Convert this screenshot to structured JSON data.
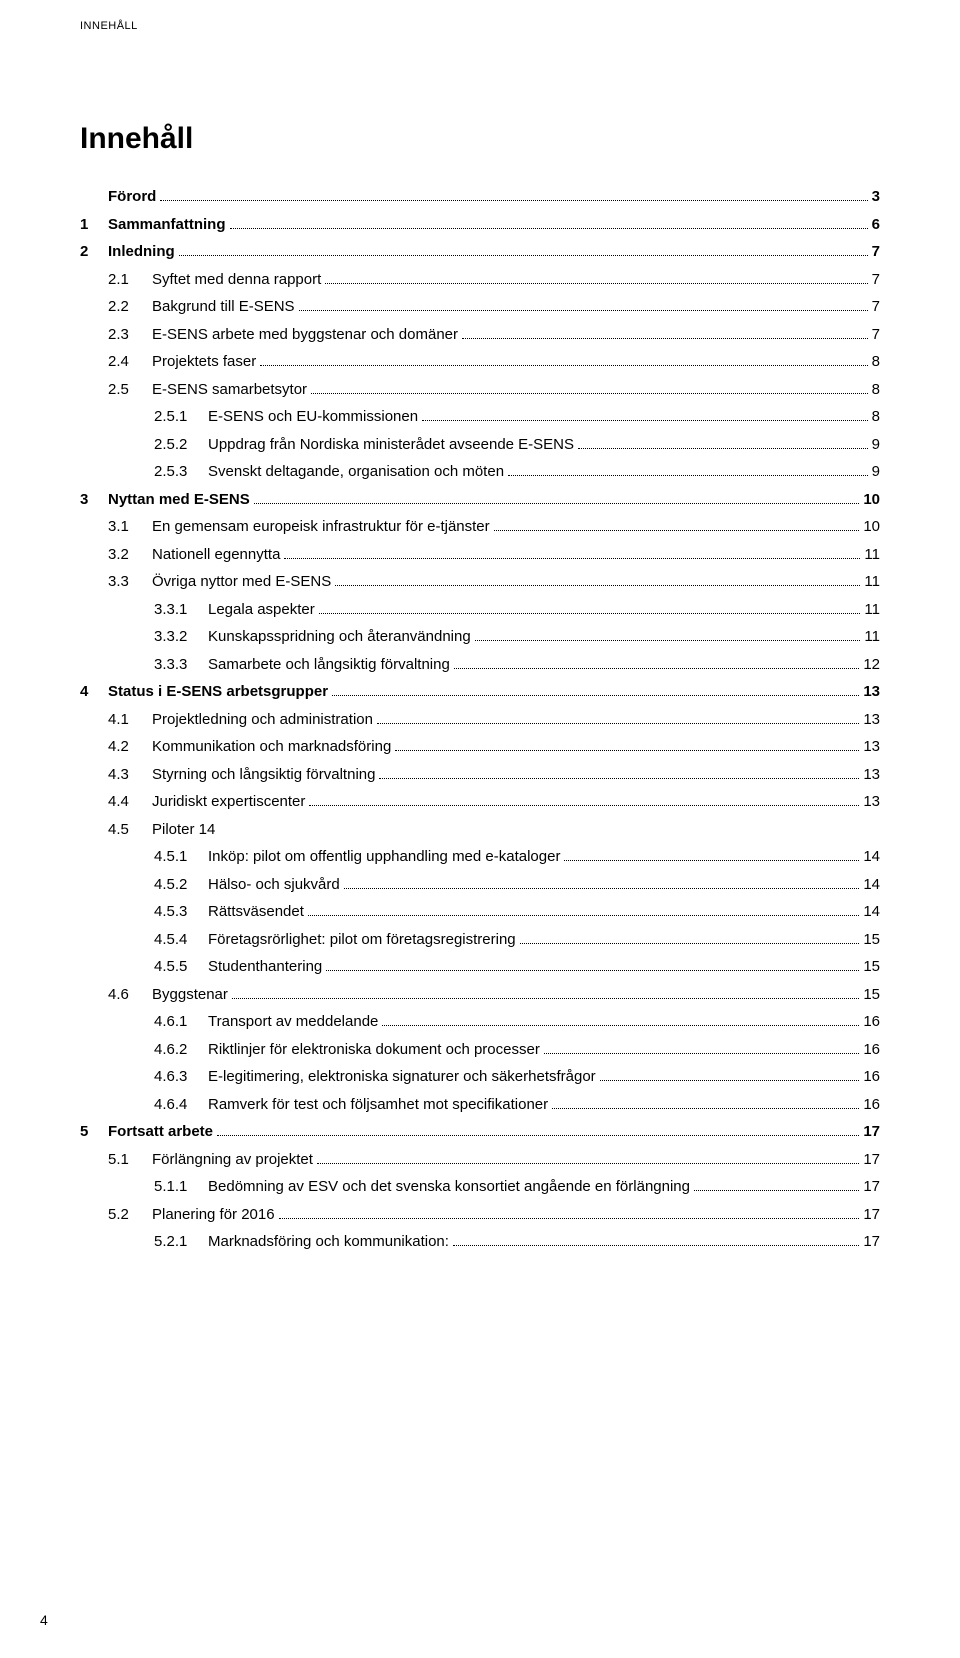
{
  "header": "INNEHÅLL",
  "title": "Innehåll",
  "footer_page": "4",
  "toc": [
    {
      "level": 0,
      "num": "",
      "text": "Förord",
      "page": "3"
    },
    {
      "level": 0,
      "num": "1",
      "text": "Sammanfattning",
      "page": "6"
    },
    {
      "level": 0,
      "num": "2",
      "text": "Inledning",
      "page": "7"
    },
    {
      "level": 1,
      "num": "2.1",
      "text": "Syftet med denna rapport",
      "page": "7"
    },
    {
      "level": 1,
      "num": "2.2",
      "text": "Bakgrund till E-SENS",
      "page": "7"
    },
    {
      "level": 1,
      "num": "2.3",
      "text": "E-SENS arbete med byggstenar och domäner",
      "page": "7"
    },
    {
      "level": 1,
      "num": "2.4",
      "text": "Projektets faser",
      "page": "8"
    },
    {
      "level": 1,
      "num": "2.5",
      "text": "E-SENS samarbetsytor",
      "page": "8"
    },
    {
      "level": 2,
      "num": "2.5.1",
      "text": "E-SENS och EU-kommissionen",
      "page": "8"
    },
    {
      "level": 2,
      "num": "2.5.2",
      "text": "Uppdrag från Nordiska ministerådet avseende E-SENS",
      "page": "9"
    },
    {
      "level": 2,
      "num": "2.5.3",
      "text": "Svenskt deltagande, organisation och möten",
      "page": "9"
    },
    {
      "level": 0,
      "num": "3",
      "text": "Nyttan med E-SENS",
      "page": "10"
    },
    {
      "level": 1,
      "num": "3.1",
      "text": "En gemensam europeisk infrastruktur för e-tjänster",
      "page": "10"
    },
    {
      "level": 1,
      "num": "3.2",
      "text": "Nationell egennytta",
      "page": "11"
    },
    {
      "level": 1,
      "num": "3.3",
      "text": "Övriga nyttor med E-SENS",
      "page": "11"
    },
    {
      "level": 2,
      "num": "3.3.1",
      "text": "Legala aspekter",
      "page": "11"
    },
    {
      "level": 2,
      "num": "3.3.2",
      "text": "Kunskapsspridning och återanvändning",
      "page": "11"
    },
    {
      "level": 2,
      "num": "3.3.3",
      "text": "Samarbete och långsiktig förvaltning",
      "page": "12"
    },
    {
      "level": 0,
      "num": "4",
      "text": "Status i E-SENS arbetsgrupper",
      "page": "13"
    },
    {
      "level": 1,
      "num": "4.1",
      "text": "Projektledning och administration",
      "page": "13"
    },
    {
      "level": 1,
      "num": "4.2",
      "text": "Kommunikation och marknadsföring",
      "page": "13"
    },
    {
      "level": 1,
      "num": "4.3",
      "text": "Styrning och långsiktig förvaltning",
      "page": "13"
    },
    {
      "level": 1,
      "num": "4.4",
      "text": "Juridiskt expertiscenter",
      "page": "13"
    },
    {
      "level": 1,
      "num": "4.5",
      "text": "Piloter 14",
      "page": "",
      "nodots": true
    },
    {
      "level": 2,
      "num": "4.5.1",
      "text": "Inköp: pilot om offentlig upphandling med e-kataloger",
      "page": "14"
    },
    {
      "level": 2,
      "num": "4.5.2",
      "text": "Hälso- och sjukvård",
      "page": "14"
    },
    {
      "level": 2,
      "num": "4.5.3",
      "text": "Rättsväsendet",
      "page": "14"
    },
    {
      "level": 2,
      "num": "4.5.4",
      "text": "Företagsrörlighet: pilot om företagsregistrering",
      "page": "15"
    },
    {
      "level": 2,
      "num": "4.5.5",
      "text": "Studenthantering",
      "page": "15"
    },
    {
      "level": 1,
      "num": "4.6",
      "text": "Byggstenar",
      "page": "15"
    },
    {
      "level": 2,
      "num": "4.6.1",
      "text": "Transport av meddelande",
      "page": "16"
    },
    {
      "level": 2,
      "num": "4.6.2",
      "text": "Riktlinjer för elektroniska dokument och processer",
      "page": "16"
    },
    {
      "level": 2,
      "num": "4.6.3",
      "text": "E-legitimering, elektroniska signaturer och säkerhetsfrågor",
      "page": "16"
    },
    {
      "level": 2,
      "num": "4.6.4",
      "text": "Ramverk för test och följsamhet mot specifikationer",
      "page": "16"
    },
    {
      "level": 0,
      "num": "5",
      "text": "Fortsatt arbete",
      "page": "17"
    },
    {
      "level": 1,
      "num": "5.1",
      "text": "Förlängning av projektet",
      "page": "17"
    },
    {
      "level": 2,
      "num": "5.1.1",
      "text": "Bedömning av ESV och det svenska konsortiet angående en förlängning",
      "page": "17"
    },
    {
      "level": 1,
      "num": "5.2",
      "text": "Planering för 2016",
      "page": "17"
    },
    {
      "level": 2,
      "num": "5.2.1",
      "text": "Marknadsföring och kommunikation:",
      "page": "17"
    }
  ]
}
